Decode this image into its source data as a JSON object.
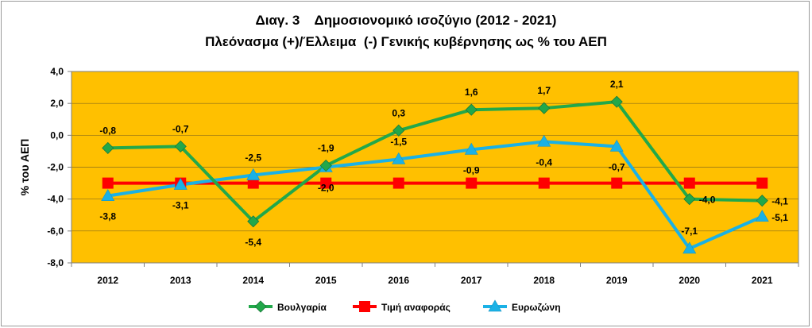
{
  "chart_data": {
    "type": "line",
    "title": "Διαγ. 3    Δημοσιονομικό ισοζύγιο (2012 - 2021)",
    "subtitle": "Πλεόνασμα (+)/Έλλειμα  (-) Γενικής κυβέρνησης ως % του ΑΕΠ",
    "ylabel": "% του ΑΕΠ",
    "xlabel": "",
    "categories": [
      "2012",
      "2013",
      "2014",
      "2015",
      "2016",
      "2017",
      "2018",
      "2019",
      "2020",
      "2021"
    ],
    "ylim": [
      -8,
      4
    ],
    "ytick_labels": [
      "4,0",
      "2,0",
      "0,0",
      "-2,0",
      "-4,0",
      "-6,0",
      "-8,0"
    ],
    "grid": true,
    "legend_position": "bottom",
    "plot_background": "#FFC000",
    "series": [
      {
        "name": "Βουλγαρία",
        "color": "#22A84A",
        "marker": "diamond",
        "values": [
          -0.8,
          -0.7,
          -5.4,
          -1.9,
          0.3,
          1.6,
          1.7,
          2.1,
          -4.0,
          -4.1
        ],
        "labels": [
          "-0,8",
          "-0,7",
          "-5,4",
          "-1,9",
          "0,3",
          "1,6",
          "1,7",
          "2,1",
          "-4,0",
          "-4,1"
        ]
      },
      {
        "name": "Τιμή αναφοράς",
        "color": "#FF0000",
        "marker": "square",
        "values": [
          -3,
          -3,
          -3,
          -3,
          -3,
          -3,
          -3,
          -3,
          -3,
          -3
        ],
        "labels": []
      },
      {
        "name": "Ευρωζώνη",
        "color": "#1AB1E6",
        "marker": "triangle",
        "values": [
          -3.8,
          -3.1,
          -2.5,
          -2.0,
          -1.5,
          -0.9,
          -0.4,
          -0.7,
          -7.1,
          -5.1
        ],
        "labels": [
          "-3,8",
          "-3,1",
          "-2,5",
          "-2,0",
          "-1,5",
          "-0,9",
          "-0,4",
          "-0,7",
          "-7,1",
          "-5,1"
        ]
      }
    ]
  }
}
